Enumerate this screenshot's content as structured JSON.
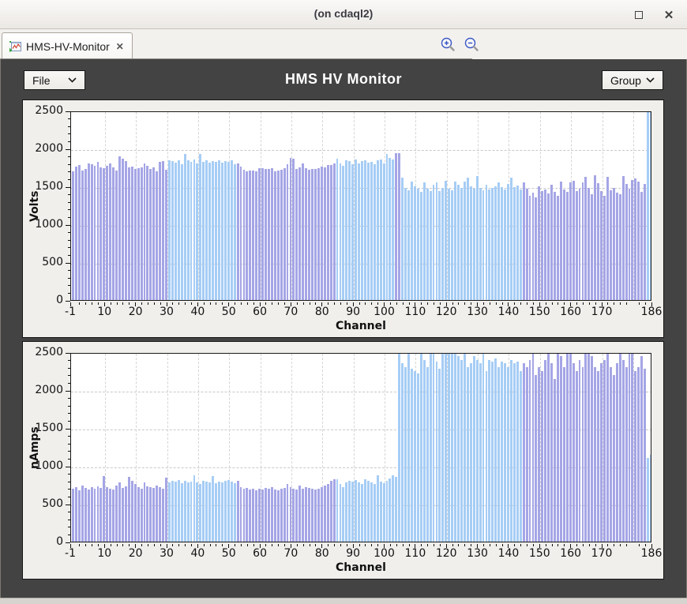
{
  "window": {
    "title": "(on cdaql2)",
    "close_glyph": "✕"
  },
  "tabbar": {
    "tab_label": "HMS-HV-Monitor",
    "tab_close_glyph": "✕"
  },
  "toolbar": {
    "file_label": "File",
    "group_label": "Group",
    "title": "HMS HV Monitor"
  },
  "colors": {
    "purple": "#a5a5e6",
    "blue": "#a6cdf5",
    "dark_background": "#434343",
    "panel_background": "#f0efec",
    "plot_background": "#ffffff"
  },
  "chart_data": [
    {
      "type": "bar",
      "ylabel": "Volts",
      "xlabel": "Channel",
      "ylim": [
        0,
        2500
      ],
      "xlim": [
        -1,
        186
      ],
      "yticks": [
        0,
        500,
        1000,
        1500,
        2000,
        2500
      ],
      "xticks": [
        -1,
        10,
        20,
        30,
        40,
        50,
        60,
        70,
        80,
        90,
        100,
        110,
        120,
        130,
        140,
        150,
        160,
        170,
        186
      ],
      "grid": true,
      "channel_start": 0,
      "color_ranges": [
        [
          0,
          30,
          "purple"
        ],
        [
          31,
          52,
          "blue"
        ],
        [
          53,
          84,
          "purple"
        ],
        [
          85,
          103,
          "blue"
        ],
        [
          104,
          105,
          "purple"
        ],
        [
          106,
          144,
          "blue"
        ],
        [
          145,
          184,
          "purple"
        ],
        [
          185,
          186,
          "blue"
        ]
      ],
      "values": [
        1700,
        1760,
        1780,
        1710,
        1725,
        1800,
        1790,
        1770,
        1820,
        1745,
        1735,
        1775,
        1800,
        1750,
        1710,
        1900,
        1860,
        1830,
        1745,
        1760,
        1725,
        1735,
        1745,
        1800,
        1770,
        1730,
        1750,
        1700,
        1825,
        1835,
        1720,
        1840,
        1830,
        1810,
        1845,
        1790,
        1925,
        1840,
        1820,
        1850,
        1800,
        1930,
        1825,
        1840,
        1815,
        1830,
        1820,
        1845,
        1810,
        1835,
        1825,
        1840,
        1790,
        1800,
        1760,
        1720,
        1700,
        1710,
        1705,
        1700,
        1735,
        1740,
        1730,
        1725,
        1740,
        1700,
        1710,
        1720,
        1735,
        1790,
        1880,
        1860,
        1730,
        1745,
        1800,
        1735,
        1720,
        1730,
        1725,
        1740,
        1760,
        1745,
        1780,
        1785,
        1800,
        1860,
        1800,
        1770,
        1840,
        1830,
        1790,
        1855,
        1800,
        1835,
        1845,
        1810,
        1825,
        1790,
        1840,
        1850,
        1800,
        1930,
        1870,
        1850,
        1940,
        1935,
        1610,
        1480,
        1450,
        1560,
        1500,
        1470,
        1430,
        1555,
        1470,
        1440,
        1520,
        1555,
        1440,
        1480,
        1575,
        1470,
        1445,
        1560,
        1520,
        1480,
        1560,
        1610,
        1500,
        1470,
        1640,
        1480,
        1450,
        1520,
        1460,
        1475,
        1500,
        1550,
        1490,
        1460,
        1530,
        1610,
        1490,
        1510,
        1460,
        1550,
        1470,
        1380,
        1420,
        1350,
        1500,
        1440,
        1460,
        1410,
        1520,
        1430,
        1380,
        1565,
        1460,
        1425,
        1550,
        1575,
        1440,
        1470,
        1550,
        1620,
        1480,
        1400,
        1650,
        1540,
        1440,
        1370,
        1630,
        1450,
        1480,
        1420,
        1400,
        1640,
        1530,
        1470,
        1580,
        1600,
        1560,
        1430,
        1530,
        2500,
        2500
      ]
    },
    {
      "type": "bar",
      "ylabel": "nAmps",
      "xlabel": "Channel",
      "ylim": [
        0,
        2500
      ],
      "xlim": [
        -1,
        186
      ],
      "yticks": [
        0,
        500,
        1000,
        1500,
        2000,
        2500
      ],
      "xticks": [
        -1,
        10,
        20,
        30,
        40,
        50,
        60,
        70,
        80,
        90,
        100,
        110,
        120,
        130,
        140,
        150,
        160,
        170,
        186
      ],
      "grid": true,
      "channel_start": 0,
      "color_ranges": [
        [
          0,
          30,
          "purple"
        ],
        [
          31,
          52,
          "blue"
        ],
        [
          53,
          84,
          "purple"
        ],
        [
          85,
          144,
          "blue"
        ],
        [
          145,
          184,
          "purple"
        ],
        [
          185,
          186,
          "blue"
        ]
      ],
      "values": [
        700,
        720,
        680,
        740,
        710,
        690,
        720,
        700,
        730,
        710,
        860,
        720,
        700,
        690,
        740,
        780,
        710,
        730,
        850,
        800,
        760,
        720,
        700,
        780,
        730,
        720,
        710,
        740,
        720,
        700,
        845,
        780,
        800,
        790,
        810,
        770,
        800,
        780,
        790,
        870,
        780,
        760,
        800,
        790,
        780,
        860,
        770,
        790,
        780,
        800,
        810,
        790,
        770,
        800,
        720,
        700,
        710,
        690,
        700,
        680,
        700,
        690,
        710,
        700,
        720,
        690,
        680,
        700,
        710,
        760,
        720,
        700,
        690,
        740,
        700,
        720,
        710,
        700,
        690,
        700,
        720,
        740,
        760,
        800,
        820,
        820,
        760,
        720,
        780,
        800,
        790,
        810,
        780,
        760,
        820,
        800,
        780,
        760,
        870,
        790,
        770,
        800,
        830,
        870,
        850,
        2500,
        2350,
        2300,
        2500,
        2280,
        2250,
        2220,
        2500,
        2400,
        2300,
        2500,
        2500,
        2380,
        2280,
        2500,
        2500,
        2500,
        2500,
        2500,
        2450,
        2400,
        2500,
        2300,
        2350,
        2450,
        2400,
        2350,
        2500,
        2250,
        2400,
        2380,
        2420,
        2300,
        2380,
        2350,
        2300,
        2400,
        2350,
        2380,
        2250,
        2350,
        2300,
        2400,
        2500,
        2200,
        2300,
        2250,
        2400,
        2500,
        2350,
        2150,
        2500,
        2450,
        2300,
        2500,
        2500,
        2350,
        2250,
        2400,
        2300,
        2500,
        2500,
        2450,
        2300,
        2250,
        2350,
        2400,
        2500,
        2300,
        2200,
        2350,
        2500,
        2400,
        2300,
        2480,
        2500,
        2250,
        2300,
        2450,
        2280,
        1100,
        1150
      ]
    }
  ]
}
